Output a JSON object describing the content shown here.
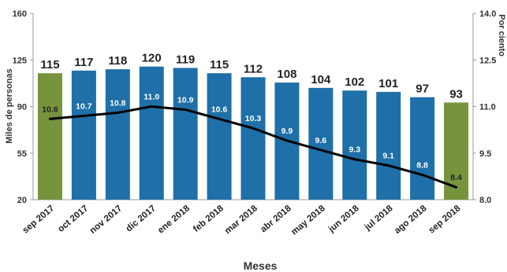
{
  "chart_data": {
    "type": "bar",
    "categories": [
      "sep 2017",
      "oct 2017",
      "nov 2017",
      "dic 2017",
      "ene 2018",
      "feb 2018",
      "mar 2018",
      "abr 2018",
      "may 2018",
      "jun 2018",
      "jul 2018",
      "ago 2018",
      "sep 2018"
    ],
    "series": [
      {
        "kind": "bar",
        "axis": "left",
        "values": [
          115,
          117,
          118,
          120,
          119,
          115,
          112,
          108,
          104,
          102,
          101,
          97,
          93
        ]
      },
      {
        "kind": "line",
        "axis": "right",
        "values": [
          10.6,
          10.7,
          10.8,
          11.0,
          10.9,
          10.6,
          10.3,
          9.9,
          9.6,
          9.3,
          9.1,
          8.8,
          8.4
        ]
      }
    ],
    "bar_labels": [
      "115",
      "117",
      "118",
      "120",
      "119",
      "115",
      "112",
      "108",
      "104",
      "102",
      "101",
      "97",
      "93"
    ],
    "line_labels": [
      "10.6",
      "10.7",
      "10.8",
      "11.0",
      "10.9",
      "10.6",
      "10.3",
      "9.9",
      "9.6",
      "9.3",
      "9.1",
      "8.8",
      "8.4"
    ],
    "xlabel": "Meses",
    "ylabel": "Miles de personas",
    "y2label": "Por ciento",
    "ylim": [
      20,
      160
    ],
    "y2lim": [
      8.0,
      14.0
    ],
    "yticks": [
      20,
      55,
      90,
      125,
      160
    ],
    "ytick_labels": [
      "20",
      "55",
      "90",
      "125",
      "160"
    ],
    "y2ticks": [
      8.0,
      9.5,
      11.0,
      12.5,
      14.0
    ],
    "y2tick_labels": [
      "8.0",
      "9.5",
      "11.0",
      "12.5",
      "14.0"
    ],
    "grid": false,
    "legend": "none",
    "colors": {
      "bar_highlight": "#77933c",
      "bar_normal": "#1f6fa8",
      "line": "#000000",
      "axis": "#999999",
      "label_light": "#ffffff",
      "label_dark": "#222222"
    },
    "highlight_indices": [
      0,
      12
    ]
  }
}
